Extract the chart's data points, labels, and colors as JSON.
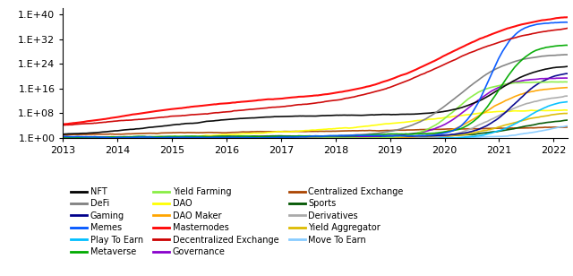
{
  "xlim": [
    2013.0,
    2022.25
  ],
  "ylim_log": [
    1.0,
    1e+42
  ],
  "yticks": [
    1.0,
    100000000.0,
    1e+16,
    1e+24,
    1e+32,
    1e+40
  ],
  "ytick_labels": [
    "1.E+00",
    "1.E+08",
    "1.E+16",
    "1.E+24",
    "1.E+32",
    "1.E+40"
  ],
  "xticks": [
    2013,
    2014,
    2015,
    2016,
    2017,
    2018,
    2019,
    2020,
    2021,
    2022
  ],
  "series": {
    "NFT": {
      "color": "#000000",
      "lw": 1.2
    },
    "DeFi": {
      "color": "#808080",
      "lw": 1.2
    },
    "Gaming": {
      "color": "#00008B",
      "lw": 1.2
    },
    "Memes": {
      "color": "#0055FF",
      "lw": 1.2
    },
    "Play To Earn": {
      "color": "#00BFFF",
      "lw": 1.2
    },
    "Metaverse": {
      "color": "#00AA00",
      "lw": 1.2
    },
    "Yield Farming": {
      "color": "#88EE44",
      "lw": 1.2
    },
    "DAO": {
      "color": "#FFFF00",
      "lw": 1.2
    },
    "DAO Maker": {
      "color": "#FFA500",
      "lw": 1.2
    },
    "Masternodes": {
      "color": "#FF0000",
      "lw": 1.5
    },
    "Decentralized Exchange": {
      "color": "#CC0000",
      "lw": 1.2
    },
    "Governance": {
      "color": "#8800CC",
      "lw": 1.2
    },
    "Centralized Exchange": {
      "color": "#AA4400",
      "lw": 1.2
    },
    "Sports": {
      "color": "#005500",
      "lw": 1.2
    },
    "Derivatives": {
      "color": "#AAAAAA",
      "lw": 1.2
    },
    "Yield Aggregator": {
      "color": "#DDBB00",
      "lw": 1.2
    },
    "Move To Earn": {
      "color": "#88CCFF",
      "lw": 1.2
    }
  },
  "legend_order": [
    [
      "NFT",
      "DeFi",
      "Gaming"
    ],
    [
      "Memes",
      "Play To Earn",
      "Metaverse"
    ],
    [
      "Yield Farming",
      "DAO",
      "DAO Maker"
    ],
    [
      "Masternodes",
      "Decentralized Exchange",
      "Governance"
    ],
    [
      "Centralized Exchange",
      "Sports",
      "Derivatives"
    ],
    [
      "Yield Aggregator",
      "Move To Earn"
    ]
  ]
}
